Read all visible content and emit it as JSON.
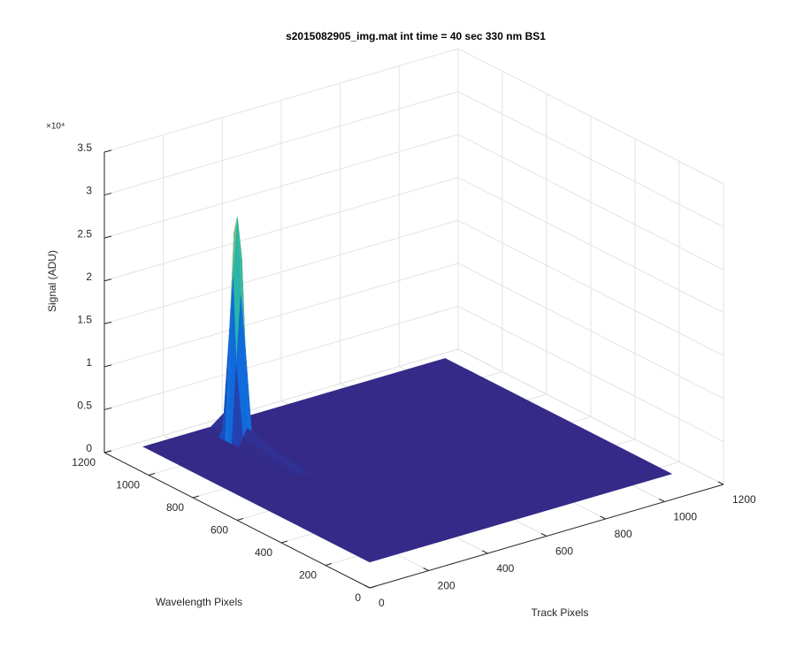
{
  "chart_data": {
    "type": "surface",
    "title": "s2015082905_img.mat int time = 40 sec  330 nm BS1",
    "xlabel": "Track Pixels",
    "ylabel": "Wavelength Pixels",
    "zlabel": "Signal (ADU)",
    "zexponent": "×10⁴",
    "colormap": "parula",
    "grid": true,
    "xlim": [
      0,
      1200
    ],
    "xticks": [
      0,
      200,
      400,
      600,
      800,
      1000,
      1200
    ],
    "ylim": [
      0,
      1200
    ],
    "yticks": [
      0,
      200,
      400,
      600,
      800,
      1000,
      1200
    ],
    "zlim": [
      0,
      35000
    ],
    "zticks": [
      0,
      {
        "value": 5000,
        "label": "0.5"
      },
      {
        "value": 10000,
        "label": "1"
      },
      {
        "value": 15000,
        "label": "1.5"
      },
      {
        "value": 20000,
        "label": "2"
      },
      {
        "value": 25000,
        "label": "2.5"
      },
      {
        "value": 30000,
        "label": "3"
      },
      {
        "value": 35000,
        "label": "3.5"
      }
    ],
    "x": [
      0,
      200,
      215,
      230,
      245,
      260,
      500,
      750,
      1024
    ],
    "y": [
      0,
      300,
      600,
      860,
      890,
      905,
      920,
      950,
      1024
    ],
    "z": [
      [
        3000,
        3000,
        3000,
        3000,
        3000,
        3000,
        3000,
        3000,
        3000
      ],
      [
        3000,
        3000,
        3000,
        3000,
        3000,
        3000,
        3000,
        3000,
        3000
      ],
      [
        3000,
        3000,
        3000,
        3000,
        3000,
        3000,
        3000,
        3000,
        3000
      ],
      [
        3000,
        3000,
        4000,
        5000,
        4000,
        3000,
        3000,
        3000,
        3000
      ],
      [
        3000,
        3000,
        12000,
        20000,
        14000,
        3000,
        3000,
        3000,
        3000
      ],
      [
        3000,
        3000,
        22000,
        29000,
        24000,
        3000,
        3000,
        3000,
        3000
      ],
      [
        3000,
        3000,
        16000,
        27000,
        18000,
        3000,
        3000,
        3000,
        3000
      ],
      [
        3000,
        3000,
        4000,
        6000,
        4000,
        3000,
        3000,
        3000,
        3000
      ],
      [
        3000,
        3000,
        3000,
        3000,
        3000,
        3000,
        3000,
        3000,
        3000
      ]
    ]
  }
}
